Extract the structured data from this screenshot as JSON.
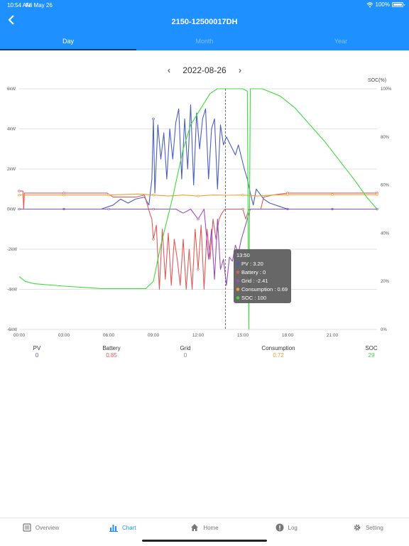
{
  "status_bar": {
    "time": "10:54 AM",
    "date": "Fri May 26",
    "battery": "100%"
  },
  "header": {
    "title": "2150-12500017DH"
  },
  "tabs": [
    {
      "label": "Day"
    },
    {
      "label": "Month"
    },
    {
      "label": "Year"
    }
  ],
  "date_nav": {
    "date": "2022-08-26",
    "prev": "‹",
    "next": "›"
  },
  "chart_data": {
    "type": "line",
    "x_labels": [
      "00:00",
      "03:00",
      "06:00",
      "09:00",
      "12:00",
      "15:00",
      "18:00",
      "21:00"
    ],
    "y_left_label": "",
    "y_left_ticks": [
      "6kW",
      "4kW",
      "2kW",
      "0kW",
      "-2kW",
      "-4kW",
      "-6kW"
    ],
    "y_left_range": [
      -6,
      6
    ],
    "y_right_label": "SOC(%)",
    "y_right_ticks": [
      "100%",
      "80%",
      "60%",
      "40%",
      "20%",
      "0%"
    ],
    "y_right_range": [
      0,
      100
    ],
    "x_range_hours": [
      0,
      24
    ],
    "grid": "horizontal",
    "series": [
      {
        "name": "PV",
        "color": "#4a5fc1",
        "axis": "left",
        "points": [
          [
            0,
            0
          ],
          [
            3,
            0
          ],
          [
            5.5,
            0
          ],
          [
            6.3,
            0.2
          ],
          [
            6.8,
            0.5
          ],
          [
            7.3,
            0.3
          ],
          [
            7.8,
            0.5
          ],
          [
            8.4,
            0.6
          ],
          [
            8.7,
            0.2
          ],
          [
            8.9,
            1.5
          ],
          [
            9.0,
            4.5
          ],
          [
            9.1,
            0.8
          ],
          [
            9.3,
            4.2
          ],
          [
            9.5,
            2.5
          ],
          [
            9.7,
            3.8
          ],
          [
            9.9,
            1.5
          ],
          [
            10.1,
            4.0
          ],
          [
            10.3,
            2.5
          ],
          [
            10.5,
            4.3
          ],
          [
            10.7,
            5.0
          ],
          [
            10.9,
            1.5
          ],
          [
            11.1,
            4.5
          ],
          [
            11.3,
            2.0
          ],
          [
            11.5,
            5.2
          ],
          [
            11.7,
            1.2
          ],
          [
            11.9,
            4.8
          ],
          [
            12.1,
            3.0
          ],
          [
            12.3,
            4.5
          ],
          [
            12.5,
            5.0
          ],
          [
            12.7,
            1.5
          ],
          [
            12.9,
            4.0
          ],
          [
            13.1,
            4.5
          ],
          [
            13.3,
            1.0
          ],
          [
            13.5,
            4.2
          ],
          [
            13.7,
            3.2
          ],
          [
            13.9,
            3.6
          ],
          [
            14.1,
            3.3
          ],
          [
            14.3,
            3.0
          ],
          [
            14.5,
            2.7
          ],
          [
            14.7,
            3.2
          ],
          [
            14.9,
            2.6
          ],
          [
            15.1,
            2.0
          ],
          [
            15.3,
            1.5
          ],
          [
            15.5,
            0.8
          ],
          [
            15.7,
            0.2
          ],
          [
            15.9,
            1.0
          ],
          [
            16.1,
            0.8
          ],
          [
            16.4,
            0.5
          ],
          [
            16.8,
            0.3
          ],
          [
            17.4,
            0.15
          ],
          [
            18.0,
            0
          ],
          [
            21,
            0
          ],
          [
            24,
            0
          ]
        ]
      },
      {
        "name": "Battery",
        "color": "#e05a5a",
        "axis": "left",
        "points": [
          [
            0,
            0.9
          ],
          [
            0.25,
            0.9
          ],
          [
            0.3,
            0
          ],
          [
            0.35,
            0.8
          ],
          [
            3,
            0.8
          ],
          [
            5.9,
            0.8
          ],
          [
            6.3,
            0.6
          ],
          [
            7.8,
            0.6
          ],
          [
            8.4,
            0.7
          ],
          [
            8.8,
            -0.3
          ],
          [
            8.9,
            -0.5
          ],
          [
            9.0,
            -1.5
          ],
          [
            9.2,
            -0.8
          ],
          [
            9.4,
            -4.0
          ],
          [
            9.6,
            -1.0
          ],
          [
            9.8,
            -3.5
          ],
          [
            10.0,
            -1.2
          ],
          [
            10.2,
            -3.8
          ],
          [
            10.4,
            -1.5
          ],
          [
            10.6,
            -2.5
          ],
          [
            10.8,
            -3.8
          ],
          [
            11.0,
            -1.5
          ],
          [
            11.2,
            -4.0
          ],
          [
            11.4,
            -2.0
          ],
          [
            11.6,
            -4.0
          ],
          [
            11.8,
            -1.0
          ],
          [
            12.0,
            -3.0
          ],
          [
            12.2,
            -0.8
          ],
          [
            12.4,
            -4.0
          ],
          [
            12.6,
            -1.0
          ],
          [
            12.8,
            -2.5
          ],
          [
            13.0,
            -0.5
          ],
          [
            13.2,
            -1.5
          ],
          [
            13.4,
            -0.5
          ],
          [
            13.6,
            -0.2
          ],
          [
            13.8,
            0
          ],
          [
            14.6,
            0
          ],
          [
            15.0,
            0
          ],
          [
            15.2,
            -0.5
          ],
          [
            15.4,
            0
          ],
          [
            16.2,
            0
          ],
          [
            16.4,
            0.6
          ],
          [
            17.0,
            0.7
          ],
          [
            18.0,
            0.8
          ],
          [
            20,
            0.8
          ],
          [
            22,
            0.8
          ],
          [
            24,
            0.8
          ]
        ]
      },
      {
        "name": "Grid",
        "color": "#9a4fc0",
        "axis": "left",
        "points": [
          [
            0,
            0
          ],
          [
            5.5,
            0
          ],
          [
            6.0,
            0
          ],
          [
            6.5,
            0
          ],
          [
            8.5,
            0
          ],
          [
            9.0,
            0
          ],
          [
            9.6,
            0
          ],
          [
            10.0,
            0
          ],
          [
            10.5,
            0
          ],
          [
            11.0,
            -0.2
          ],
          [
            11.5,
            0
          ],
          [
            12.0,
            -0.5
          ],
          [
            12.4,
            0
          ],
          [
            12.7,
            -2.5
          ],
          [
            12.9,
            -1.0
          ],
          [
            13.1,
            -3.5
          ],
          [
            13.3,
            -0.5
          ],
          [
            13.5,
            -3.0
          ],
          [
            13.7,
            -2.5
          ],
          [
            13.9,
            -3.8
          ],
          [
            14.1,
            -2.4
          ],
          [
            14.3,
            -2.6
          ],
          [
            14.5,
            -1.8
          ],
          [
            14.7,
            -2.2
          ],
          [
            14.9,
            -1.5
          ],
          [
            15.1,
            -1.0
          ],
          [
            15.3,
            -0.5
          ],
          [
            15.5,
            0
          ],
          [
            17.0,
            0
          ],
          [
            24,
            0
          ]
        ]
      },
      {
        "name": "Consumption",
        "color": "#f0a030",
        "axis": "left",
        "points": [
          [
            0,
            0.7
          ],
          [
            3,
            0.7
          ],
          [
            6,
            0.7
          ],
          [
            8,
            0.75
          ],
          [
            9,
            0.7
          ],
          [
            10,
            0.65
          ],
          [
            11,
            0.7
          ],
          [
            12,
            0.65
          ],
          [
            13,
            0.7
          ],
          [
            14,
            0.69
          ],
          [
            15,
            0.7
          ],
          [
            16,
            0.65
          ],
          [
            17,
            0.7
          ],
          [
            18,
            0.72
          ],
          [
            21,
            0.72
          ],
          [
            24,
            0.72
          ]
        ]
      },
      {
        "name": "SOC",
        "color": "#3ddc3d",
        "axis": "right",
        "points": [
          [
            0,
            22
          ],
          [
            0.4,
            20
          ],
          [
            1.0,
            19
          ],
          [
            3,
            18
          ],
          [
            5.5,
            17
          ],
          [
            8.5,
            17
          ],
          [
            9.0,
            20
          ],
          [
            9.5,
            35
          ],
          [
            10.3,
            55
          ],
          [
            11.0,
            75
          ],
          [
            11.5,
            85
          ],
          [
            12.2,
            92
          ],
          [
            12.8,
            98
          ],
          [
            13.3,
            100
          ],
          [
            14.5,
            100
          ],
          [
            15.0,
            100
          ],
          [
            15.3,
            99
          ],
          [
            15.4,
            0
          ],
          [
            15.5,
            100
          ],
          [
            16.0,
            100
          ],
          [
            16.3,
            100
          ],
          [
            17.5,
            97
          ],
          [
            18.5,
            92
          ],
          [
            19.5,
            85
          ],
          [
            20.5,
            78
          ],
          [
            21.5,
            70
          ],
          [
            22.5,
            62
          ],
          [
            23.3,
            55
          ],
          [
            24,
            50
          ]
        ]
      }
    ],
    "cursor_time_hours": 13.83,
    "tooltip": {
      "time": "13:50",
      "items": [
        {
          "label": "PV : 3.20",
          "color": "#4a5fc1"
        },
        {
          "label": "Battery : 0",
          "color": "#e05a5a"
        },
        {
          "label": "Grid : -2.41",
          "color": "#9a4fc0"
        },
        {
          "label": "Consumption : 0.69",
          "color": "#f0a030"
        },
        {
          "label": "SOC : 100",
          "color": "#3ddc3d"
        }
      ]
    }
  },
  "legend": [
    {
      "name": "PV",
      "value": "0",
      "color": "#4a5fc1"
    },
    {
      "name": "Battery",
      "value": "0.85",
      "color": "#e05a5a"
    },
    {
      "name": "Grid",
      "value": "0",
      "color": "#888888"
    },
    {
      "name": "Consumption",
      "value": "0.72",
      "color": "#f0a030"
    },
    {
      "name": "SOC",
      "value": "29",
      "color": "#3ddc3d"
    }
  ],
  "bottom_nav": [
    {
      "label": "Overview",
      "icon": "overview-icon"
    },
    {
      "label": "Chart",
      "icon": "chart-icon"
    },
    {
      "label": "Home",
      "icon": "home-icon"
    },
    {
      "label": "Log",
      "icon": "log-icon"
    },
    {
      "label": "Setting",
      "icon": "gear-icon"
    }
  ],
  "colors": {
    "accent": "#1e90ff",
    "tab_indicator": "#0b3a8f"
  }
}
